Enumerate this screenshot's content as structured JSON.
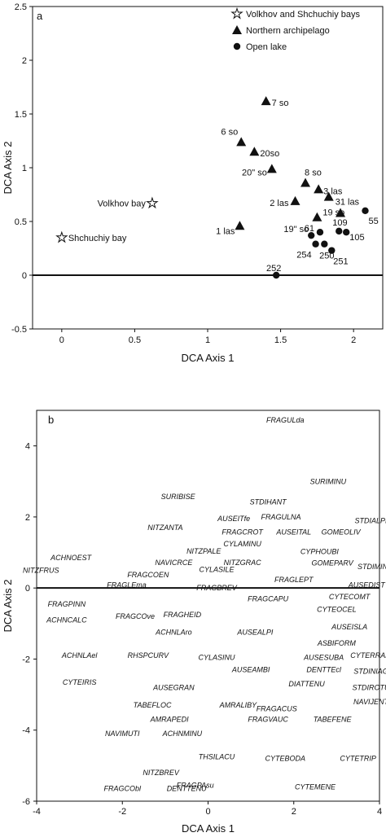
{
  "chart_data": [
    {
      "panel": "a",
      "type": "scatter",
      "xlabel": "DCA Axis 1",
      "ylabel": "DCA Axis 2",
      "xlim": [
        -0.2,
        2.2
      ],
      "ylim": [
        -0.5,
        2.5
      ],
      "xticks": [
        0,
        0.5,
        1,
        1.5,
        2
      ],
      "xtick_labels": [
        "0",
        "0.5",
        "1",
        "1.5",
        "2"
      ],
      "yticks": [
        -0.5,
        0,
        0.5,
        1,
        1.5,
        2,
        2.5
      ],
      "ytick_labels": [
        "-0.5",
        "0",
        "0.5",
        "1",
        "1.5",
        "2",
        "2.5"
      ],
      "zero_line": "y=0",
      "legend_position": "top-right",
      "series": [
        {
          "name": "Volkhov and Shchuchiy bays",
          "marker": "star",
          "points": [
            {
              "label": "Volkhov bay",
              "x": 0.62,
              "y": 0.67
            },
            {
              "label": "Shchuchiy bay",
              "x": 0.0,
              "y": 0.35
            }
          ]
        },
        {
          "name": "Northern archipelago",
          "marker": "triangle",
          "points": [
            {
              "label": "7 so",
              "x": 1.4,
              "y": 1.62
            },
            {
              "label": "6 so",
              "x": 1.23,
              "y": 1.24
            },
            {
              "label": "20so",
              "x": 1.32,
              "y": 1.15
            },
            {
              "label": "20\" so",
              "x": 1.44,
              "y": 0.99
            },
            {
              "label": "8 so",
              "x": 1.67,
              "y": 0.86
            },
            {
              "label": "3 las",
              "x": 1.76,
              "y": 0.8
            },
            {
              "label": "31 las",
              "x": 1.83,
              "y": 0.73
            },
            {
              "label": "2 las",
              "x": 1.6,
              "y": 0.69
            },
            {
              "label": "19 so",
              "x": 1.75,
              "y": 0.54
            },
            {
              "label": "1 las",
              "x": 1.22,
              "y": 0.46
            },
            {
              "label": "",
              "x": 1.91,
              "y": 0.58
            }
          ]
        },
        {
          "name": "Open lake",
          "marker": "circle",
          "points": [
            {
              "label": "61",
              "x": 1.77,
              "y": 0.4
            },
            {
              "label": "19\" so",
              "x": 1.71,
              "y": 0.37
            },
            {
              "label": "254",
              "x": 1.74,
              "y": 0.29
            },
            {
              "label": "250",
              "x": 1.8,
              "y": 0.29
            },
            {
              "label": "109",
              "x": 1.9,
              "y": 0.41
            },
            {
              "label": "105",
              "x": 1.95,
              "y": 0.4
            },
            {
              "label": "55",
              "x": 2.08,
              "y": 0.6
            },
            {
              "label": "251",
              "x": 1.85,
              "y": 0.23
            },
            {
              "label": "252",
              "x": 1.47,
              "y": 0.0
            }
          ]
        }
      ]
    },
    {
      "panel": "b",
      "type": "scatter",
      "xlabel": "DCA Axis 1",
      "ylabel": "DCA Axis 2",
      "xlim": [
        -4,
        4
      ],
      "ylim": [
        -6,
        5
      ],
      "xticks": [
        -4,
        -2,
        0,
        2,
        4
      ],
      "xtick_labels": [
        "-4",
        "-2",
        "0",
        "2",
        "4"
      ],
      "yticks": [
        -6,
        -4,
        -2,
        0,
        2,
        4
      ],
      "ytick_labels": [
        "-6",
        "-4",
        "-2",
        "0",
        "2",
        "4"
      ],
      "zero_line": "y=0",
      "points": [
        {
          "label": "FRAGULda",
          "x": 1.8,
          "y": 4.72
        },
        {
          "label": "SURIMINU",
          "x": 2.8,
          "y": 3.0
        },
        {
          "label": "SURIBISE",
          "x": -0.7,
          "y": 2.57
        },
        {
          "label": "STDIHANT",
          "x": 1.4,
          "y": 2.42
        },
        {
          "label": "FRAGULNA",
          "x": 1.7,
          "y": 2.0
        },
        {
          "label": "STDIALPI",
          "x": 3.8,
          "y": 1.9
        },
        {
          "label": "NITZANTA",
          "x": -1.0,
          "y": 1.7
        },
        {
          "label": "AUSEITfe",
          "x": 0.6,
          "y": 1.95
        },
        {
          "label": "FRAGCROT",
          "x": 0.8,
          "y": 1.57
        },
        {
          "label": "AUSEITAL",
          "x": 2.0,
          "y": 1.57
        },
        {
          "label": "GOMEOLIV",
          "x": 3.1,
          "y": 1.57
        },
        {
          "label": "CYLAMINU",
          "x": 0.8,
          "y": 1.24
        },
        {
          "label": "NITZPALE",
          "x": -0.1,
          "y": 1.03
        },
        {
          "label": "CYPHOUBI",
          "x": 2.6,
          "y": 1.02
        },
        {
          "label": "ACHNOEST",
          "x": -3.2,
          "y": 0.85
        },
        {
          "label": "NAVICRCE",
          "x": -0.8,
          "y": 0.72
        },
        {
          "label": "NITZGRAC",
          "x": 0.8,
          "y": 0.72
        },
        {
          "label": "GOMEPARV",
          "x": 2.9,
          "y": 0.7
        },
        {
          "label": "STDIMINU",
          "x": 3.9,
          "y": 0.6
        },
        {
          "label": "NITZFRUS",
          "x": -3.9,
          "y": 0.5
        },
        {
          "label": "FRAGCOEN",
          "x": -1.4,
          "y": 0.37
        },
        {
          "label": "CYLASILE",
          "x": 0.2,
          "y": 0.52
        },
        {
          "label": "FRAGLEPT",
          "x": 2.0,
          "y": 0.23
        },
        {
          "label": "AUSEDIST",
          "x": 3.7,
          "y": 0.08
        },
        {
          "label": "FRAGLEma",
          "x": -1.9,
          "y": 0.09
        },
        {
          "label": "FRAGBREV",
          "x": 0.2,
          "y": 0.0
        },
        {
          "label": "CYTECOMT",
          "x": 3.3,
          "y": -0.25
        },
        {
          "label": "FRAGPINN",
          "x": -3.3,
          "y": -0.45
        },
        {
          "label": "FRAGCAPU",
          "x": 1.4,
          "y": -0.3
        },
        {
          "label": "CYTEOCEL",
          "x": 3.0,
          "y": -0.6
        },
        {
          "label": "ACHNCALC",
          "x": -3.3,
          "y": -0.9
        },
        {
          "label": "FRAGCOve",
          "x": -1.7,
          "y": -0.8
        },
        {
          "label": "FRAGHEID",
          "x": -0.6,
          "y": -0.75
        },
        {
          "label": "AUSEISLA",
          "x": 3.3,
          "y": -1.1
        },
        {
          "label": "ACHNLAro",
          "x": -0.8,
          "y": -1.25
        },
        {
          "label": "AUSEALPI",
          "x": 1.1,
          "y": -1.25
        },
        {
          "label": "ASBIFORM",
          "x": 3.0,
          "y": -1.55
        },
        {
          "label": "RHSPCURV",
          "x": -1.4,
          "y": -1.9
        },
        {
          "label": "CYLASINU",
          "x": 0.2,
          "y": -1.95
        },
        {
          "label": "AUSESUBA",
          "x": 2.7,
          "y": -1.95
        },
        {
          "label": "CYTERRAM",
          "x": 3.8,
          "y": -1.9
        },
        {
          "label": "ACHNLAel",
          "x": -3.0,
          "y": -1.9
        },
        {
          "label": "AUSEAMBI",
          "x": 1.0,
          "y": -2.3
        },
        {
          "label": "DENTTEcl",
          "x": 2.7,
          "y": -2.3
        },
        {
          "label": "STDINIAG",
          "x": 3.8,
          "y": -2.35
        },
        {
          "label": "CYTEIRIS",
          "x": -3.0,
          "y": -2.65
        },
        {
          "label": "AUSEGRAN",
          "x": -0.8,
          "y": -2.8
        },
        {
          "label": "DIATTENU",
          "x": 2.3,
          "y": -2.7
        },
        {
          "label": "STDIROTU",
          "x": 3.8,
          "y": -2.8
        },
        {
          "label": "TABEFLOC",
          "x": -1.3,
          "y": -3.3
        },
        {
          "label": "AMRALIBY",
          "x": 0.7,
          "y": -3.3
        },
        {
          "label": "FRAGACUS",
          "x": 1.6,
          "y": -3.4
        },
        {
          "label": "NAVIJENT",
          "x": 3.8,
          "y": -3.2
        },
        {
          "label": "AMRAPEDI",
          "x": -0.9,
          "y": -3.7
        },
        {
          "label": "FRAGVAUC",
          "x": 1.4,
          "y": -3.7
        },
        {
          "label": "TABEFENE",
          "x": 2.9,
          "y": -3.7
        },
        {
          "label": "NAVIMUTI",
          "x": -2.0,
          "y": -4.1
        },
        {
          "label": "ACHNMINU",
          "x": -0.6,
          "y": -4.1
        },
        {
          "label": "CYTEBODA",
          "x": 1.8,
          "y": -4.8
        },
        {
          "label": "CYTETRIP",
          "x": 3.5,
          "y": -4.8
        },
        {
          "label": "NITZBREV",
          "x": -1.1,
          "y": -5.2
        },
        {
          "label": "FRAGCObl",
          "x": -2.0,
          "y": -5.65
        },
        {
          "label": "DENTTENU",
          "x": -0.5,
          "y": -5.65
        },
        {
          "label": "THSILACU",
          "x": 0.2,
          "y": -4.75
        },
        {
          "label": "FRAGPAsu",
          "x": -0.3,
          "y": -5.55
        },
        {
          "label": "CYTEMENE",
          "x": 2.5,
          "y": -5.6
        }
      ]
    }
  ]
}
